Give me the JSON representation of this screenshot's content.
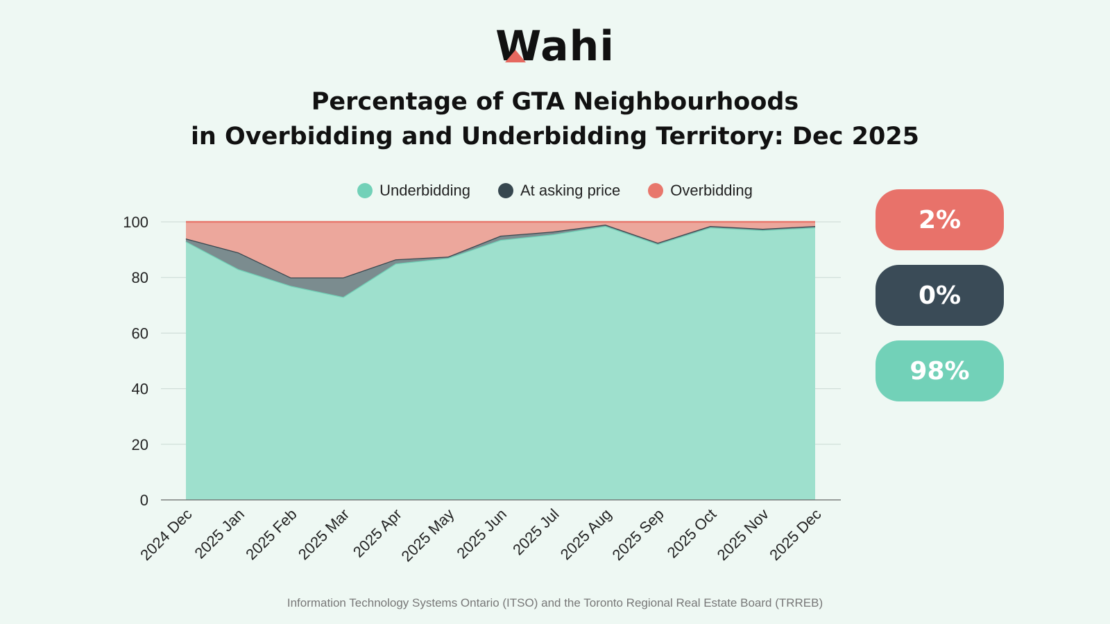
{
  "brand": {
    "name": "Wahi",
    "roof_color": "#e6685f"
  },
  "title": {
    "line1": "Percentage of GTA Neighbourhoods",
    "line2": "in Overbidding and Underbidding Territory: Dec 2025"
  },
  "legend": [
    {
      "label": "Underbidding",
      "color": "#72d1b8"
    },
    {
      "label": "At asking price",
      "color": "#37474f"
    },
    {
      "label": "Overbidding",
      "color": "#e8776c"
    }
  ],
  "summary": {
    "overbidding": {
      "label": "2%",
      "color": "#e8726a"
    },
    "at_asking": {
      "label": "0%",
      "color": "#3a4b57"
    },
    "underbidding": {
      "label": "98%",
      "color": "#72d1b8"
    }
  },
  "source": "Information Technology Systems Ontario (ITSO) and the Toronto Regional Real Estate Board (TRREB)",
  "chart_data": {
    "type": "area",
    "stacked": true,
    "categories": [
      "2024 Dec",
      "2025 Jan",
      "2025 Feb",
      "2025 Mar",
      "2025 Apr",
      "2025 May",
      "2025 Jun",
      "2025 Jul",
      "2025 Aug",
      "2025 Sep",
      "2025 Oct",
      "2025 Nov",
      "2025 Dec"
    ],
    "series": [
      {
        "name": "Underbidding",
        "values": [
          93,
          83,
          77,
          73,
          85,
          87,
          93.5,
          95.5,
          98.5,
          92,
          98,
          97,
          98
        ],
        "color": "#9ee0cd"
      },
      {
        "name": "At asking price",
        "values": [
          1,
          6,
          3,
          7,
          1.5,
          0.5,
          1.5,
          1,
          0.5,
          0.5,
          0.5,
          0.5,
          0.5
        ],
        "color": "#7b8c8f"
      },
      {
        "name": "Overbidding",
        "values": [
          6,
          11,
          20,
          20,
          13.5,
          12.5,
          5,
          3.5,
          1,
          7.5,
          1.5,
          2.5,
          1.5
        ],
        "color": "#eca79c"
      }
    ],
    "ylim": [
      0,
      100
    ],
    "yticks": [
      0,
      20,
      40,
      60,
      80,
      100
    ],
    "grid": true,
    "legend_position": "top"
  }
}
